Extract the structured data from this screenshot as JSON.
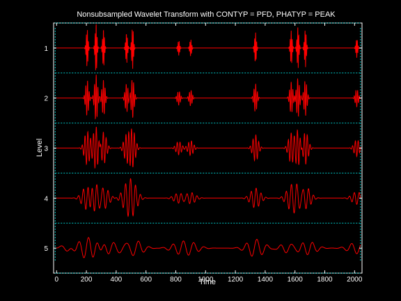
{
  "figure": {
    "background": "#000000",
    "axes_color": "#ffffff",
    "text_color": "#ffffff"
  },
  "chart_data": {
    "type": "line",
    "title": "Nonsubsampled Wavelet Transform with CONTYP = PFD, PHATYP = PEAK",
    "xlabel": "Time",
    "ylabel": "Level",
    "xlim": [
      -20,
      2050
    ],
    "ylim": [
      5.5,
      0.5
    ],
    "xticks": [
      0,
      200,
      400,
      600,
      800,
      1000,
      1200,
      1400,
      1600,
      1800,
      2000
    ],
    "yticks": [
      1,
      2,
      3,
      4,
      5
    ],
    "ytick_labels": [
      "1",
      "2",
      "3",
      "4",
      "5"
    ],
    "separators_y": [
      1.5,
      2.5,
      3.5,
      4.5
    ],
    "separator_color": "#00cccc",
    "series_color": "#ff0000",
    "grid": false,
    "events": [
      {
        "t": 205,
        "amp": 1.0
      },
      {
        "t": 265,
        "amp": 1.3
      },
      {
        "t": 315,
        "amp": 1.0
      },
      {
        "t": 470,
        "amp": 0.8
      },
      {
        "t": 510,
        "amp": 1.1
      },
      {
        "t": 820,
        "amp": 0.4
      },
      {
        "t": 900,
        "amp": 0.45
      },
      {
        "t": 1335,
        "amp": 0.8
      },
      {
        "t": 1575,
        "amp": 0.9
      },
      {
        "t": 1620,
        "amp": 1.1
      },
      {
        "t": 1670,
        "amp": 1.0
      },
      {
        "t": 2015,
        "amp": 0.5
      }
    ]
  }
}
